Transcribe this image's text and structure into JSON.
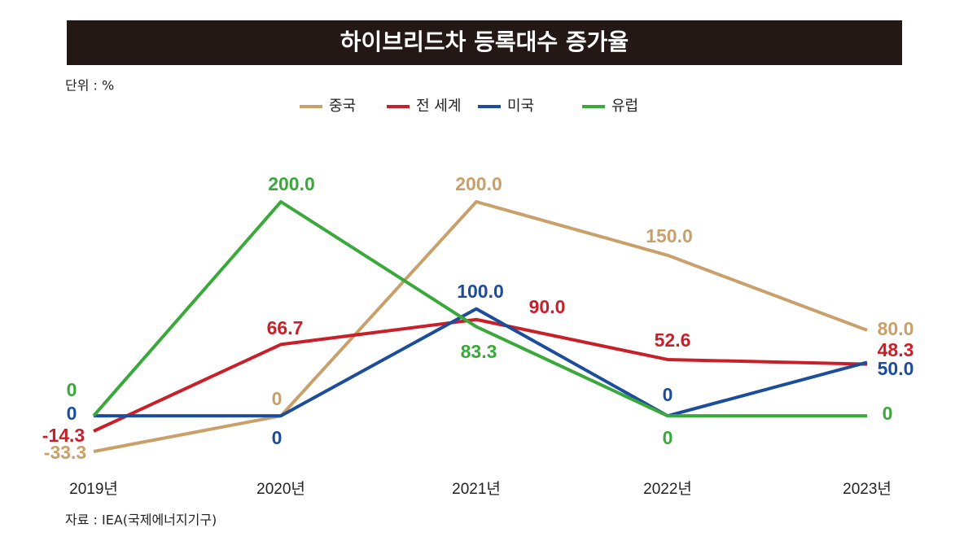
{
  "chart_data": {
    "type": "line",
    "title": "하이브리드차 등록대수 증가율",
    "unit_label": "단위 : %",
    "source": "자료 : IEA(국제에너지기구)",
    "categories": [
      "2019년",
      "2020년",
      "2021년",
      "2022년",
      "2023년"
    ],
    "series": [
      {
        "name": "중국",
        "color": "#c9a06a",
        "values": [
          -33.3,
          0,
          200,
          150,
          80
        ],
        "value_labels": [
          "-33.3",
          "0",
          "200.0",
          "150.0",
          "80.0"
        ]
      },
      {
        "name": "전 세계",
        "color": "#c8202a",
        "values": [
          -14.3,
          66.7,
          90,
          52.6,
          48.3
        ],
        "value_labels": [
          "-14.3",
          "66.7",
          "90.0",
          "52.6",
          "48.3"
        ]
      },
      {
        "name": "미국",
        "color": "#1c4d9a",
        "values": [
          0,
          0,
          100,
          0,
          50
        ],
        "value_labels": [
          "0",
          "0",
          "100.0",
          "0",
          "50.0"
        ]
      },
      {
        "name": "유럽",
        "color": "#3aa83a",
        "values": [
          0,
          200,
          83.3,
          0,
          0
        ],
        "value_labels": [
          "0",
          "200.0",
          "83.3",
          "0",
          "0"
        ]
      }
    ]
  }
}
